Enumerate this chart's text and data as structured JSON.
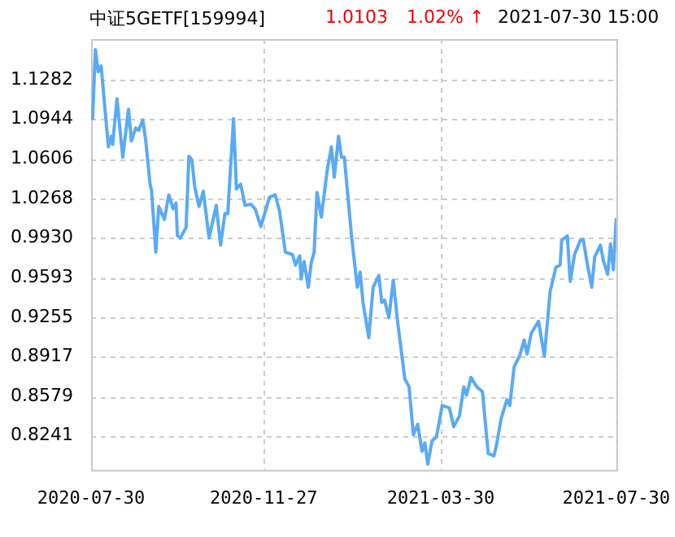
{
  "chart_data": {
    "type": "line",
    "title": "中证5GETF[159994]",
    "annotations": [
      "1.0103",
      "1.02% ↑",
      "2021-07-30 15:00"
    ],
    "x": [
      "2020-07-31",
      "2020-08-02",
      "2020-08-04",
      "2020-08-06",
      "2020-08-11",
      "2020-08-13",
      "2020-08-14",
      "2020-08-17",
      "2020-08-21",
      "2020-08-25",
      "2020-08-27",
      "2020-08-30",
      "2020-09-01",
      "2020-09-04",
      "2020-09-06",
      "2020-09-09",
      "2020-09-10",
      "2020-09-13",
      "2020-09-15",
      "2020-09-19",
      "2020-09-22",
      "2020-09-25",
      "2020-09-27",
      "2020-09-28",
      "2020-09-30",
      "2020-10-04",
      "2020-10-06",
      "2020-10-08",
      "2020-10-10",
      "2020-10-13",
      "2020-10-16",
      "2020-10-20",
      "2020-10-25",
      "2020-10-28",
      "2020-10-31",
      "2020-11-02",
      "2020-11-06",
      "2020-11-08",
      "2020-11-11",
      "2020-11-14",
      "2020-11-18",
      "2020-11-21",
      "2020-11-25",
      "2020-12-01",
      "2020-12-05",
      "2020-12-08",
      "2020-12-12",
      "2020-12-17",
      "2020-12-19",
      "2020-12-22",
      "2020-12-23",
      "2020-12-25",
      "2020-12-28",
      "2020-12-30",
      "2021-01-01",
      "2021-01-03",
      "2021-01-06",
      "2021-01-10",
      "2021-01-13",
      "2021-01-15",
      "2021-01-18",
      "2021-01-20",
      "2021-01-22",
      "2021-01-27",
      "2021-01-31",
      "2021-02-02",
      "2021-02-04",
      "2021-02-08",
      "2021-02-11",
      "2021-02-15",
      "2021-02-17",
      "2021-02-19",
      "2021-02-22",
      "2021-02-25",
      "2021-02-28",
      "2021-03-05",
      "2021-03-08",
      "2021-03-11",
      "2021-03-14",
      "2021-03-17",
      "2021-03-19",
      "2021-03-21",
      "2021-03-24",
      "2021-03-27",
      "2021-03-31",
      "2021-04-05",
      "2021-04-08",
      "2021-04-12",
      "2021-04-15",
      "2021-04-17",
      "2021-04-20",
      "2021-04-24",
      "2021-04-28",
      "2021-05-02",
      "2021-05-06",
      "2021-05-08",
      "2021-05-11",
      "2021-05-15",
      "2021-05-17",
      "2021-05-20",
      "2021-05-24",
      "2021-05-27",
      "2021-05-29",
      "2021-06-01",
      "2021-06-06",
      "2021-06-10",
      "2021-06-13",
      "2021-06-14",
      "2021-06-18",
      "2021-06-21",
      "2021-06-22",
      "2021-06-26",
      "2021-06-28",
      "2021-07-01",
      "2021-07-05",
      "2021-07-07",
      "2021-07-10",
      "2021-07-13",
      "2021-07-15",
      "2021-07-19",
      "2021-07-21",
      "2021-07-24",
      "2021-07-26",
      "2021-07-28",
      "2021-07-30"
    ],
    "series": [
      {
        "color": "#5aaaf5",
        "values": [
          1.094,
          1.154,
          1.135,
          1.14,
          1.071,
          1.08,
          1.073,
          1.112,
          1.062,
          1.103,
          1.076,
          1.087,
          1.085,
          1.094,
          1.076,
          1.039,
          1.034,
          0.981,
          1.02,
          1.009,
          1.03,
          1.018,
          1.023,
          0.995,
          0.993,
          1.002,
          1.063,
          1.06,
          1.037,
          1.02,
          1.033,
          0.993,
          1.021,
          0.987,
          1.014,
          1.014,
          1.095,
          1.035,
          1.039,
          1.021,
          1.022,
          1.018,
          1.003,
          1.028,
          1.03,
          1.016,
          0.981,
          0.979,
          0.97,
          0.978,
          0.958,
          0.973,
          0.951,
          0.972,
          0.981,
          1.032,
          1.011,
          1.05,
          1.071,
          1.045,
          1.08,
          1.062,
          1.062,
          0.995,
          0.951,
          0.964,
          0.938,
          0.908,
          0.951,
          0.961,
          0.938,
          0.94,
          0.925,
          0.957,
          0.922,
          0.873,
          0.866,
          0.825,
          0.834,
          0.811,
          0.818,
          0.8,
          0.82,
          0.823,
          0.85,
          0.848,
          0.832,
          0.841,
          0.866,
          0.859,
          0.874,
          0.866,
          0.862,
          0.809,
          0.807,
          0.818,
          0.839,
          0.855,
          0.85,
          0.883,
          0.893,
          0.906,
          0.894,
          0.912,
          0.922,
          0.892,
          0.933,
          0.947,
          0.968,
          0.97,
          0.991,
          0.995,
          0.956,
          0.979,
          0.991,
          0.992,
          0.97,
          0.951,
          0.977,
          0.987,
          0.974,
          0.962,
          0.988,
          0.966,
          1.01
        ]
      }
    ],
    "xlim": [
      "2020-07-30",
      "2021-07-30"
    ],
    "xticks": [
      "2020-07-30",
      "2020-11-27",
      "2021-03-30",
      "2021-07-30"
    ],
    "ylim": [
      0.795,
      1.163
    ],
    "yticks": [
      {
        "value": 0.8241,
        "label": "0.8241"
      },
      {
        "value": 0.8579,
        "label": "0.8579"
      },
      {
        "value": 0.8917,
        "label": "0.8917"
      },
      {
        "value": 0.9255,
        "label": "0.9255"
      },
      {
        "value": 0.9593,
        "label": "0.9593"
      },
      {
        "value": 0.993,
        "label": "0.9930"
      },
      {
        "value": 1.0268,
        "label": "1.0268"
      },
      {
        "value": 1.0606,
        "label": "1.0606"
      },
      {
        "value": 1.0944,
        "label": "1.0944"
      },
      {
        "value": 1.1282,
        "label": "1.1282"
      }
    ],
    "grid": true,
    "marker": "none",
    "line_style": "solid"
  }
}
